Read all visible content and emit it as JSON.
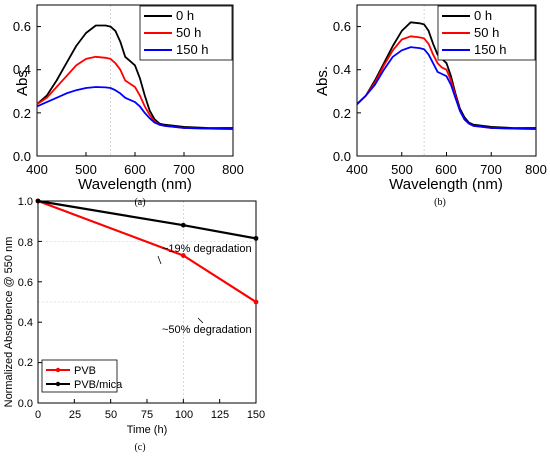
{
  "chart_data": [
    {
      "panel_label": "(a)",
      "type": "line",
      "xlabel": "Wavelength (nm)",
      "ylabel": "Abs.",
      "xlim": [
        400,
        800
      ],
      "ylim": [
        0.0,
        0.7
      ],
      "xticks": [
        "400",
        "500",
        "600",
        "700",
        "800"
      ],
      "yticks": [
        "0.0",
        "0.2",
        "0.4",
        "0.6"
      ],
      "x": [
        400,
        420,
        440,
        460,
        480,
        500,
        520,
        540,
        550,
        560,
        570,
        580,
        590,
        600,
        610,
        620,
        630,
        640,
        650,
        660,
        680,
        700,
        750,
        800
      ],
      "series": [
        {
          "name": "0 h",
          "color": "#000000",
          "values": [
            0.24,
            0.28,
            0.35,
            0.43,
            0.51,
            0.57,
            0.605,
            0.605,
            0.6,
            0.58,
            0.53,
            0.46,
            0.44,
            0.42,
            0.36,
            0.28,
            0.21,
            0.17,
            0.15,
            0.145,
            0.14,
            0.135,
            0.13,
            0.13
          ]
        },
        {
          "name": "50 h",
          "color": "#ff0000",
          "values": [
            0.24,
            0.27,
            0.32,
            0.37,
            0.42,
            0.45,
            0.46,
            0.455,
            0.45,
            0.43,
            0.4,
            0.35,
            0.335,
            0.32,
            0.28,
            0.23,
            0.19,
            0.16,
            0.145,
            0.14,
            0.135,
            0.13,
            0.127,
            0.125
          ]
        },
        {
          "name": "150 h",
          "color": "#0000ff",
          "values": [
            0.23,
            0.25,
            0.27,
            0.29,
            0.305,
            0.315,
            0.32,
            0.318,
            0.315,
            0.305,
            0.29,
            0.27,
            0.26,
            0.25,
            0.23,
            0.2,
            0.175,
            0.155,
            0.145,
            0.14,
            0.135,
            0.13,
            0.127,
            0.125
          ]
        }
      ]
    },
    {
      "panel_label": "(b)",
      "type": "line",
      "xlabel": "Wavelength (nm)",
      "ylabel": "Abs.",
      "xlim": [
        400,
        800
      ],
      "ylim": [
        0.0,
        0.7
      ],
      "xticks": [
        "400",
        "500",
        "600",
        "700",
        "800"
      ],
      "yticks": [
        "0.0",
        "0.2",
        "0.4",
        "0.6"
      ],
      "x": [
        400,
        420,
        440,
        460,
        480,
        500,
        520,
        540,
        550,
        560,
        570,
        580,
        590,
        600,
        610,
        620,
        630,
        640,
        650,
        660,
        680,
        700,
        750,
        800
      ],
      "series": [
        {
          "name": "0 h",
          "color": "#000000",
          "values": [
            0.24,
            0.28,
            0.35,
            0.43,
            0.51,
            0.58,
            0.62,
            0.615,
            0.61,
            0.58,
            0.52,
            0.47,
            0.45,
            0.43,
            0.37,
            0.29,
            0.22,
            0.18,
            0.155,
            0.145,
            0.14,
            0.135,
            0.13,
            0.13
          ]
        },
        {
          "name": "50 h",
          "color": "#ff0000",
          "values": [
            0.24,
            0.28,
            0.34,
            0.42,
            0.49,
            0.54,
            0.555,
            0.55,
            0.545,
            0.52,
            0.47,
            0.43,
            0.41,
            0.4,
            0.35,
            0.28,
            0.21,
            0.17,
            0.15,
            0.14,
            0.135,
            0.13,
            0.127,
            0.125
          ]
        },
        {
          "name": "150 h",
          "color": "#0000ff",
          "values": [
            0.24,
            0.28,
            0.33,
            0.4,
            0.46,
            0.49,
            0.505,
            0.5,
            0.495,
            0.47,
            0.43,
            0.39,
            0.38,
            0.37,
            0.33,
            0.27,
            0.21,
            0.17,
            0.15,
            0.14,
            0.135,
            0.13,
            0.127,
            0.125
          ]
        }
      ]
    },
    {
      "panel_label": "(c)",
      "type": "line",
      "xlabel": "Time (h)",
      "ylabel": "Normalized Absorbence @ 550 nm",
      "xlim": [
        0,
        150
      ],
      "ylim": [
        0.0,
        1.0
      ],
      "xticks": [
        "0",
        "25",
        "50",
        "75",
        "100",
        "125",
        "150"
      ],
      "yticks": [
        "0.0",
        "0.2",
        "0.4",
        "0.6",
        "0.8",
        "1.0"
      ],
      "x": [
        0,
        100,
        150
      ],
      "series": [
        {
          "name": "PVB",
          "color": "#ff0000",
          "values": [
            1.0,
            0.73,
            0.5
          ]
        },
        {
          "name": "PVB/mica",
          "color": "#000000",
          "values": [
            1.0,
            0.88,
            0.815
          ]
        }
      ],
      "annotations": [
        "~19% degradation",
        "~50% degradation"
      ]
    }
  ]
}
